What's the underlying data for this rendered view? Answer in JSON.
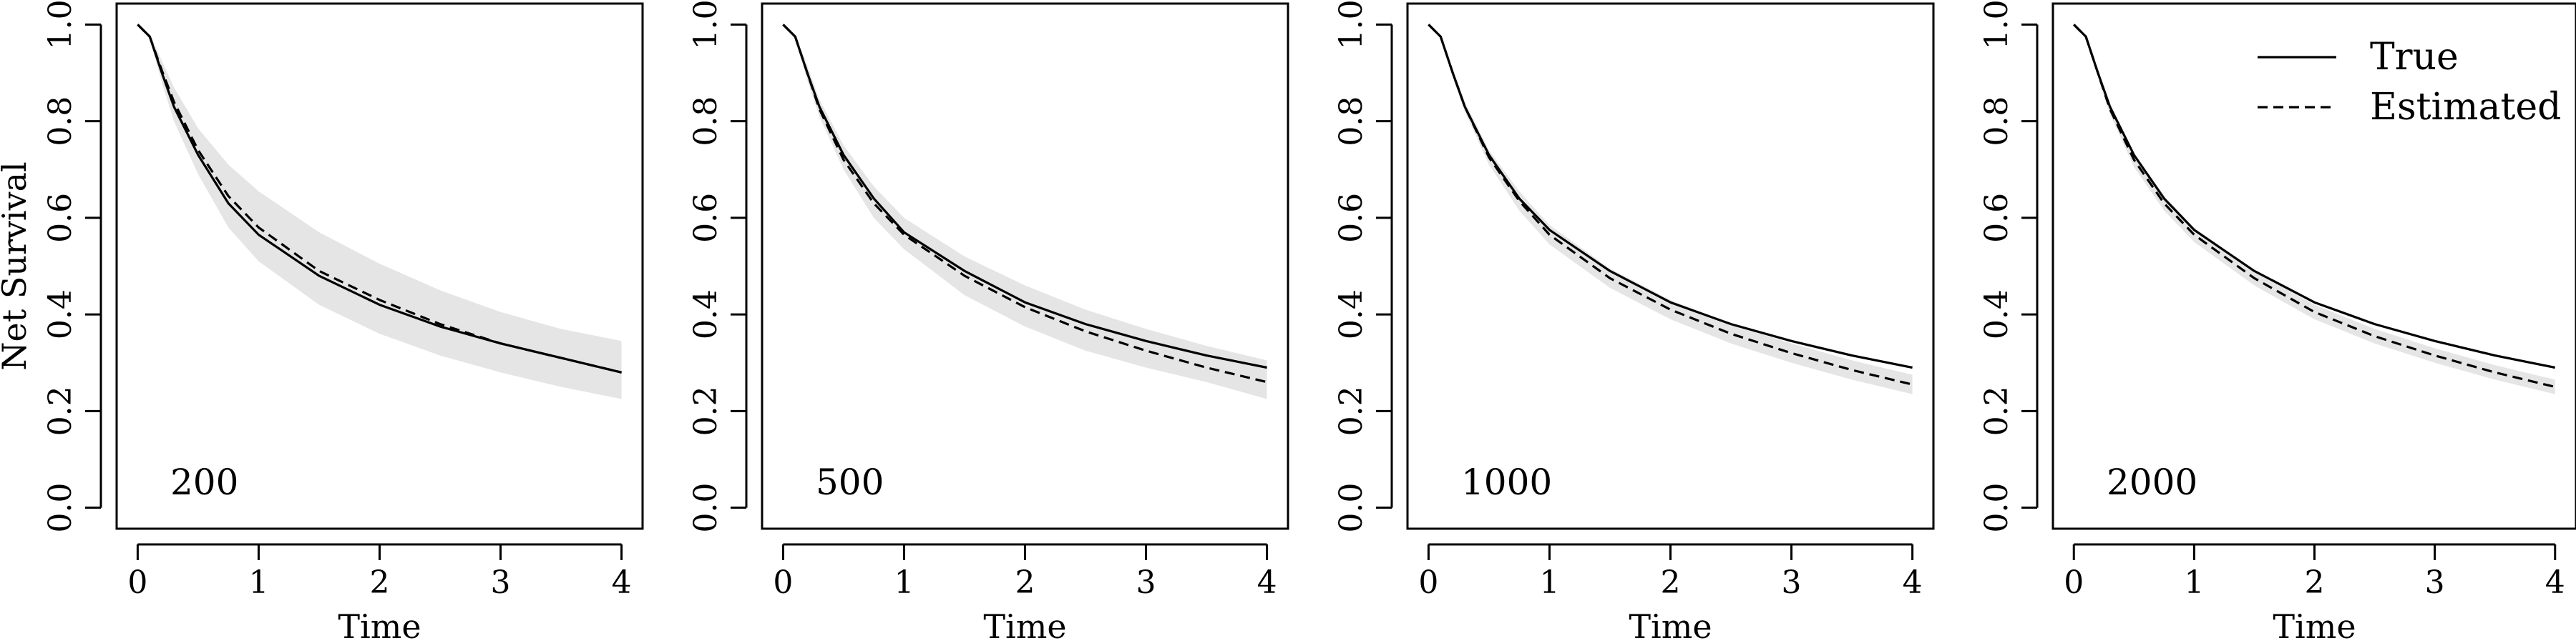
{
  "chart_data": [
    {
      "type": "line",
      "panel_label": "200",
      "xlabel": "Time",
      "ylabel": "Net Survival",
      "xlim": [
        0,
        4
      ],
      "ylim": [
        0,
        1
      ],
      "xticks": [
        "0",
        "1",
        "2",
        "3",
        "4"
      ],
      "yticks": [
        "0.0",
        "0.2",
        "0.4",
        "0.6",
        "0.8",
        "1.0"
      ],
      "x": [
        0,
        0.1,
        0.2,
        0.3,
        0.5,
        0.75,
        1,
        1.5,
        2,
        2.5,
        3,
        3.5,
        4
      ],
      "series": [
        {
          "name": "True",
          "style": "solid",
          "values": [
            1.0,
            0.975,
            0.9,
            0.83,
            0.73,
            0.63,
            0.565,
            0.48,
            0.42,
            0.375,
            0.34,
            0.31,
            0.28
          ]
        },
        {
          "name": "Estimated",
          "style": "dashed",
          "values": [
            1.0,
            0.975,
            0.905,
            0.84,
            0.74,
            0.645,
            0.58,
            0.49,
            0.43,
            0.38,
            0.34,
            0.31,
            0.28
          ]
        }
      ],
      "band": {
        "lower": [
          1.0,
          0.97,
          0.88,
          0.8,
          0.69,
          0.58,
          0.51,
          0.42,
          0.36,
          0.315,
          0.28,
          0.25,
          0.225
        ],
        "upper": [
          1.0,
          0.98,
          0.925,
          0.87,
          0.785,
          0.71,
          0.655,
          0.57,
          0.505,
          0.45,
          0.405,
          0.37,
          0.345
        ]
      },
      "legend": false
    },
    {
      "type": "line",
      "panel_label": "500",
      "xlabel": "Time",
      "ylabel": "",
      "xlim": [
        0,
        4
      ],
      "ylim": [
        0,
        1
      ],
      "xticks": [
        "0",
        "1",
        "2",
        "3",
        "4"
      ],
      "yticks": [
        "0.0",
        "0.2",
        "0.4",
        "0.6",
        "0.8",
        "1.0"
      ],
      "x": [
        0,
        0.1,
        0.2,
        0.3,
        0.5,
        0.75,
        1,
        1.5,
        2,
        2.5,
        3,
        3.5,
        4
      ],
      "series": [
        {
          "name": "True",
          "style": "solid",
          "values": [
            1.0,
            0.975,
            0.9,
            0.83,
            0.73,
            0.64,
            0.57,
            0.49,
            0.425,
            0.38,
            0.345,
            0.315,
            0.29
          ]
        },
        {
          "name": "Estimated",
          "style": "dashed",
          "values": [
            1.0,
            0.975,
            0.9,
            0.825,
            0.72,
            0.63,
            0.565,
            0.48,
            0.415,
            0.365,
            0.325,
            0.29,
            0.26
          ]
        }
      ],
      "band": {
        "lower": [
          1.0,
          0.97,
          0.885,
          0.81,
          0.7,
          0.6,
          0.535,
          0.44,
          0.375,
          0.325,
          0.29,
          0.26,
          0.225
        ],
        "upper": [
          1.0,
          0.98,
          0.915,
          0.845,
          0.75,
          0.665,
          0.6,
          0.52,
          0.46,
          0.41,
          0.37,
          0.335,
          0.305
        ]
      },
      "legend": false
    },
    {
      "type": "line",
      "panel_label": "1000",
      "xlabel": "Time",
      "ylabel": "",
      "xlim": [
        0,
        4
      ],
      "ylim": [
        0,
        1
      ],
      "xticks": [
        "0",
        "1",
        "2",
        "3",
        "4"
      ],
      "yticks": [
        "0.0",
        "0.2",
        "0.4",
        "0.6",
        "0.8",
        "1.0"
      ],
      "x": [
        0,
        0.1,
        0.2,
        0.3,
        0.5,
        0.75,
        1,
        1.5,
        2,
        2.5,
        3,
        3.5,
        4
      ],
      "series": [
        {
          "name": "True",
          "style": "solid",
          "values": [
            1.0,
            0.975,
            0.9,
            0.83,
            0.73,
            0.64,
            0.575,
            0.49,
            0.425,
            0.38,
            0.345,
            0.315,
            0.29
          ]
        },
        {
          "name": "Estimated",
          "style": "dashed",
          "values": [
            1.0,
            0.975,
            0.9,
            0.83,
            0.725,
            0.635,
            0.565,
            0.475,
            0.41,
            0.36,
            0.32,
            0.285,
            0.255
          ]
        }
      ],
      "band": {
        "lower": [
          1.0,
          0.972,
          0.893,
          0.82,
          0.71,
          0.615,
          0.545,
          0.455,
          0.39,
          0.34,
          0.3,
          0.265,
          0.235
        ],
        "upper": [
          1.0,
          0.978,
          0.907,
          0.84,
          0.74,
          0.655,
          0.585,
          0.495,
          0.43,
          0.38,
          0.34,
          0.305,
          0.275
        ]
      },
      "legend": false
    },
    {
      "type": "line",
      "panel_label": "2000",
      "xlabel": "Time",
      "ylabel": "",
      "xlim": [
        0,
        4
      ],
      "ylim": [
        0,
        1
      ],
      "xticks": [
        "0",
        "1",
        "2",
        "3",
        "4"
      ],
      "yticks": [
        "0.0",
        "0.2",
        "0.4",
        "0.6",
        "0.8",
        "1.0"
      ],
      "x": [
        0,
        0.1,
        0.2,
        0.3,
        0.5,
        0.75,
        1,
        1.5,
        2,
        2.5,
        3,
        3.5,
        4
      ],
      "series": [
        {
          "name": "True",
          "style": "solid",
          "values": [
            1.0,
            0.975,
            0.9,
            0.83,
            0.73,
            0.64,
            0.575,
            0.49,
            0.425,
            0.38,
            0.345,
            0.315,
            0.29
          ]
        },
        {
          "name": "Estimated",
          "style": "dashed",
          "values": [
            1.0,
            0.975,
            0.9,
            0.825,
            0.72,
            0.63,
            0.565,
            0.475,
            0.405,
            0.355,
            0.315,
            0.28,
            0.25
          ]
        }
      ],
      "band": {
        "lower": [
          1.0,
          0.973,
          0.892,
          0.815,
          0.705,
          0.615,
          0.55,
          0.46,
          0.39,
          0.34,
          0.3,
          0.265,
          0.235
        ],
        "upper": [
          1.0,
          0.977,
          0.908,
          0.835,
          0.735,
          0.645,
          0.58,
          0.49,
          0.42,
          0.37,
          0.33,
          0.295,
          0.265
        ]
      },
      "legend": true,
      "legend_position": "top-right"
    }
  ],
  "legend": {
    "entries": [
      {
        "label": "True",
        "style": "solid"
      },
      {
        "label": "Estimated",
        "style": "dashed"
      }
    ]
  },
  "colors": {
    "band": "#e5e5e5",
    "line": "#000000",
    "axis": "#000000"
  }
}
